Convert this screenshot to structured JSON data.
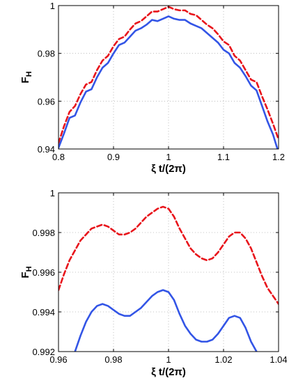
{
  "chart_data": [
    {
      "type": "line",
      "title": "",
      "xlabel": "ξ t/(2π)",
      "ylabel_main": "F",
      "ylabel_sub": "H",
      "xlim": [
        0.8,
        1.2
      ],
      "ylim": [
        0.94,
        1.0
      ],
      "xticks": [
        "0.8",
        "0.9",
        "1",
        "1.1",
        "1.2"
      ],
      "yticks": [
        "0.94",
        "0.96",
        "0.98",
        "1"
      ],
      "xtick_values": [
        0.8,
        0.9,
        1.0,
        1.1,
        1.2
      ],
      "ytick_values": [
        0.94,
        0.96,
        0.98,
        1.0
      ],
      "grid": true,
      "series": [
        {
          "style": "dashed",
          "color": "#e8141b",
          "x": [
            0.8,
            0.81,
            0.82,
            0.83,
            0.84,
            0.85,
            0.86,
            0.87,
            0.88,
            0.89,
            0.9,
            0.91,
            0.92,
            0.93,
            0.94,
            0.95,
            0.96,
            0.97,
            0.98,
            0.99,
            1.0,
            1.01,
            1.02,
            1.03,
            1.04,
            1.05,
            1.06,
            1.07,
            1.08,
            1.09,
            1.1,
            1.11,
            1.12,
            1.13,
            1.14,
            1.15,
            1.16,
            1.17,
            1.18,
            1.19,
            1.2
          ],
          "y": [
            0.9425,
            0.9495,
            0.9555,
            0.958,
            0.963,
            0.967,
            0.968,
            0.973,
            0.977,
            0.979,
            0.983,
            0.986,
            0.987,
            0.99,
            0.9925,
            0.9935,
            0.9955,
            0.9975,
            0.9975,
            0.9985,
            0.9995,
            0.9985,
            0.998,
            0.998,
            0.9965,
            0.996,
            0.994,
            0.992,
            0.9905,
            0.988,
            0.985,
            0.9835,
            0.979,
            0.977,
            0.973,
            0.969,
            0.968,
            0.962,
            0.9565,
            0.9505,
            0.944
          ]
        },
        {
          "style": "solid",
          "color": "#3355e6",
          "x": [
            0.8,
            0.81,
            0.82,
            0.83,
            0.84,
            0.85,
            0.86,
            0.87,
            0.88,
            0.89,
            0.9,
            0.91,
            0.92,
            0.93,
            0.94,
            0.95,
            0.96,
            0.97,
            0.98,
            0.99,
            1.0,
            1.01,
            1.02,
            1.03,
            1.04,
            1.05,
            1.06,
            1.07,
            1.08,
            1.09,
            1.1,
            1.11,
            1.12,
            1.13,
            1.14,
            1.15,
            1.16,
            1.17,
            1.18,
            1.19,
            1.2
          ],
          "y": [
            0.9405,
            0.9465,
            0.953,
            0.954,
            0.9595,
            0.964,
            0.965,
            0.97,
            0.974,
            0.976,
            0.98,
            0.9835,
            0.9845,
            0.987,
            0.9895,
            0.9905,
            0.992,
            0.994,
            0.9935,
            0.9945,
            0.9955,
            0.9945,
            0.994,
            0.994,
            0.9925,
            0.9915,
            0.9905,
            0.9885,
            0.9865,
            0.9845,
            0.9815,
            0.98,
            0.976,
            0.974,
            0.9705,
            0.9665,
            0.9645,
            0.958,
            0.9515,
            0.946,
            0.9385
          ]
        }
      ]
    },
    {
      "type": "line",
      "title": "",
      "xlabel": "ξ t/(2π)",
      "ylabel_main": "F",
      "ylabel_sub": "H",
      "xlim": [
        0.96,
        1.04
      ],
      "ylim": [
        0.992,
        1.0
      ],
      "xticks": [
        "0.96",
        "0.98",
        "1",
        "1.02",
        "1.04"
      ],
      "yticks": [
        "0.992",
        "0.994",
        "0.996",
        "0.998",
        "1"
      ],
      "xtick_values": [
        0.96,
        0.98,
        1.0,
        1.02,
        1.04
      ],
      "ytick_values": [
        0.992,
        0.994,
        0.996,
        0.998,
        1.0
      ],
      "grid": true,
      "series": [
        {
          "style": "dashed",
          "color": "#e8141b",
          "x": [
            0.96,
            0.962,
            0.964,
            0.966,
            0.968,
            0.97,
            0.972,
            0.974,
            0.976,
            0.978,
            0.98,
            0.982,
            0.984,
            0.986,
            0.988,
            0.99,
            0.992,
            0.994,
            0.996,
            0.998,
            1.0,
            1.002,
            1.004,
            1.006,
            1.008,
            1.01,
            1.012,
            1.014,
            1.016,
            1.018,
            1.02,
            1.022,
            1.024,
            1.026,
            1.028,
            1.03,
            1.032,
            1.034,
            1.036,
            1.038,
            1.04
          ],
          "y": [
            0.9951,
            0.9959,
            0.9966,
            0.9971,
            0.9976,
            0.9979,
            0.9982,
            0.9983,
            0.9984,
            0.9983,
            0.9981,
            0.9979,
            0.9979,
            0.998,
            0.9982,
            0.9985,
            0.9988,
            0.999,
            0.9992,
            0.9993,
            0.9992,
            0.9988,
            0.9982,
            0.9977,
            0.9972,
            0.9969,
            0.9967,
            0.9966,
            0.9967,
            0.997,
            0.9974,
            0.9978,
            0.998,
            0.998,
            0.9977,
            0.9972,
            0.9965,
            0.9958,
            0.9952,
            0.9948,
            0.9944
          ]
        },
        {
          "style": "solid",
          "color": "#3355e6",
          "x": [
            0.966,
            0.968,
            0.97,
            0.972,
            0.974,
            0.976,
            0.978,
            0.98,
            0.982,
            0.984,
            0.986,
            0.988,
            0.99,
            0.992,
            0.994,
            0.996,
            0.998,
            1.0,
            1.002,
            1.004,
            1.006,
            1.008,
            1.01,
            1.012,
            1.014,
            1.016,
            1.018,
            1.02,
            1.022,
            1.024,
            1.026,
            1.028,
            1.03,
            1.032
          ],
          "y": [
            0.992,
            0.9928,
            0.9935,
            0.994,
            0.9943,
            0.9944,
            0.9943,
            0.9941,
            0.9939,
            0.9938,
            0.9938,
            0.994,
            0.9942,
            0.9945,
            0.9948,
            0.995,
            0.9951,
            0.995,
            0.9946,
            0.9939,
            0.9933,
            0.9929,
            0.9926,
            0.9925,
            0.9925,
            0.9926,
            0.9929,
            0.9933,
            0.9937,
            0.9938,
            0.9937,
            0.9932,
            0.9925,
            0.992
          ]
        }
      ]
    }
  ]
}
